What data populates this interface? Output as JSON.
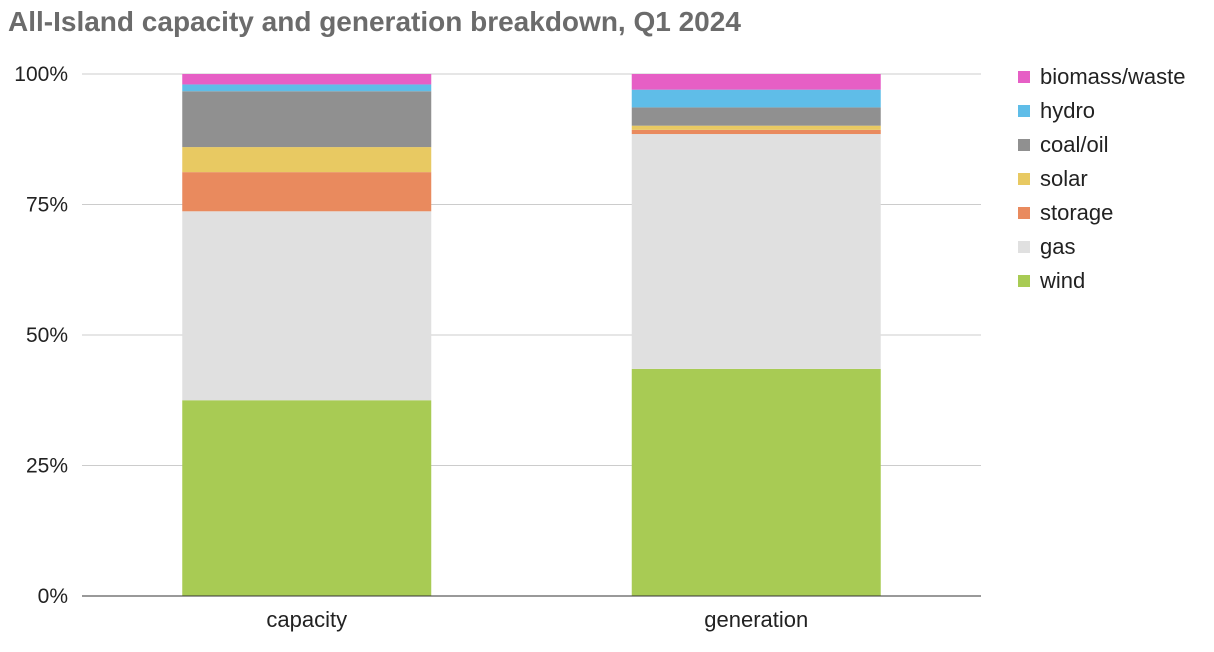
{
  "chart_data": {
    "type": "bar",
    "stacked": true,
    "title": "All-Island capacity and generation breakdown, Q1 2024",
    "categories": [
      "capacity",
      "generation"
    ],
    "yticks": [
      "0%",
      "25%",
      "50%",
      "75%",
      "100%"
    ],
    "ylim": [
      0,
      100
    ],
    "grid": true,
    "legend_position": "right",
    "series": [
      {
        "name": "wind",
        "color": "#a8cb54",
        "values": [
          37.5,
          43.5
        ]
      },
      {
        "name": "gas",
        "color": "#e0e0e0",
        "values": [
          36.2,
          45.0
        ]
      },
      {
        "name": "storage",
        "color": "#e98a5e",
        "values": [
          7.5,
          0.8
        ]
      },
      {
        "name": "solar",
        "color": "#e8c962",
        "values": [
          4.8,
          0.8
        ]
      },
      {
        "name": "coal/oil",
        "color": "#909090",
        "values": [
          10.7,
          3.5
        ]
      },
      {
        "name": "hydro",
        "color": "#5fbde8",
        "values": [
          1.3,
          3.4
        ]
      },
      {
        "name": "biomass/waste",
        "color": "#e65fc5",
        "values": [
          2.0,
          3.0
        ]
      }
    ]
  }
}
